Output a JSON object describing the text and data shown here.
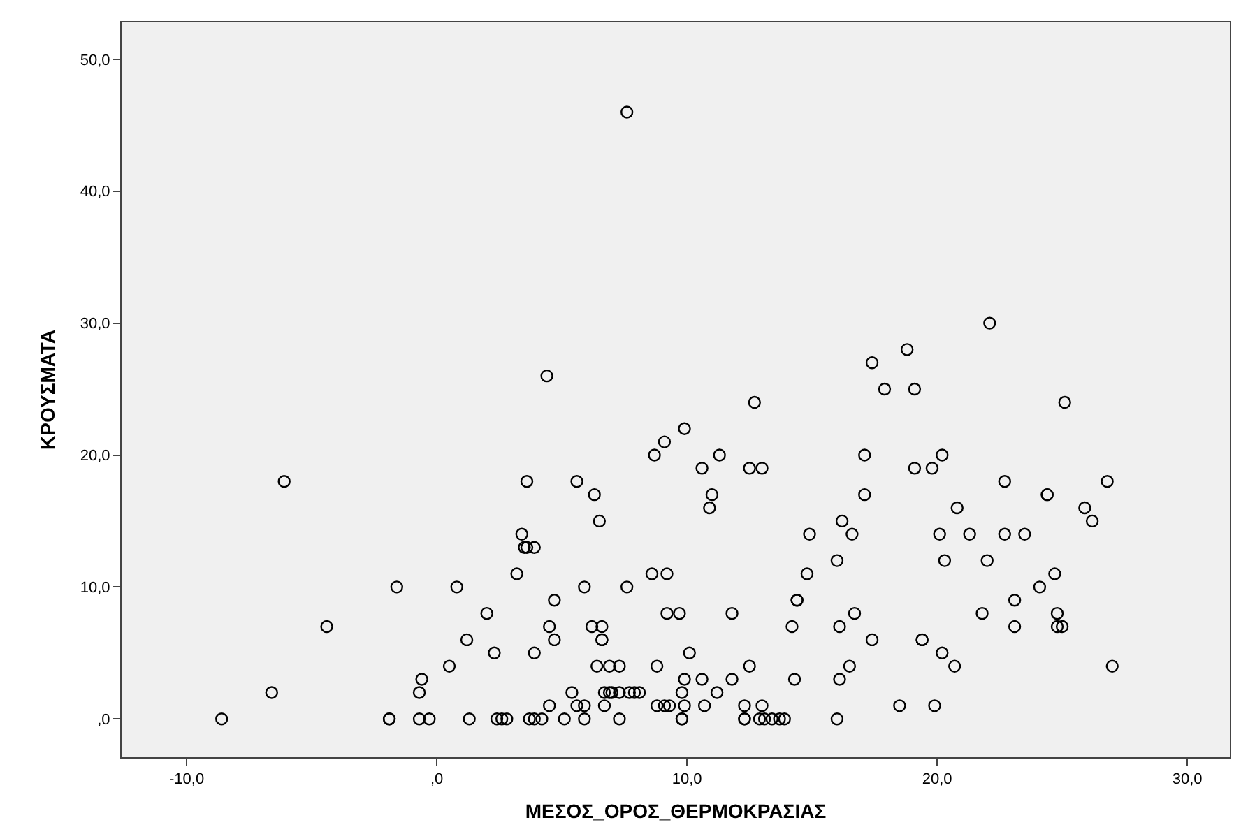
{
  "chart_data": {
    "type": "scatter",
    "xlabel": "ΜΕΣΟΣ_ΟΡΟΣ_ΘΕΡΜΟΚΡΑΣΙΑΣ",
    "ylabel": "ΚΡΟΥΣΜΑΤΑ",
    "x": [
      -8.6,
      -1.9,
      -1.9,
      -0.7,
      -0.3,
      1.3,
      2.4,
      2.6,
      2.8,
      3.7,
      3.9,
      4.2,
      5.1,
      5.9,
      7.3,
      9.8,
      9.8,
      12.3,
      12.3,
      12.9,
      13.1,
      13.4,
      13.7,
      13.9,
      16.0,
      4.5,
      5.6,
      5.9,
      6.7,
      8.8,
      9.1,
      9.3,
      9.9,
      10.7,
      12.3,
      13.0,
      18.5,
      19.9,
      -6.6,
      -0.7,
      5.4,
      6.7,
      6.9,
      7.0,
      7.3,
      7.7,
      7.9,
      8.1,
      9.8,
      11.2,
      -0.6,
      9.9,
      10.6,
      11.8,
      14.3,
      16.1,
      0.5,
      6.4,
      6.9,
      7.3,
      8.8,
      12.5,
      16.5,
      20.7,
      27.0,
      2.3,
      3.9,
      10.1,
      20.2,
      1.2,
      4.7,
      6.6,
      6.6,
      17.4,
      19.4,
      19.4,
      -4.4,
      4.5,
      6.2,
      6.6,
      14.2,
      16.1,
      23.1,
      24.8,
      25.0,
      2.0,
      9.2,
      9.7,
      11.8,
      16.7,
      21.8,
      24.8,
      4.7,
      14.4,
      14.4,
      23.1,
      -1.6,
      0.8,
      5.9,
      7.6,
      24.1,
      3.2,
      8.6,
      9.2,
      14.8,
      24.7,
      16.0,
      20.3,
      22.0,
      3.5,
      3.6,
      3.9,
      3.4,
      14.9,
      16.6,
      20.1,
      21.3,
      22.7,
      23.5,
      6.5,
      16.2,
      26.2,
      10.9,
      20.8,
      25.9,
      6.3,
      11.0,
      17.1,
      24.4,
      24.4,
      -6.1,
      3.6,
      5.6,
      22.7,
      26.8,
      10.6,
      12.5,
      13.0,
      19.1,
      19.8,
      8.7,
      11.3,
      17.1,
      20.2,
      9.1,
      9.9,
      12.7,
      25.1,
      17.9,
      19.1,
      4.4,
      17.4,
      18.8,
      22.1,
      7.6
    ],
    "series": [
      {
        "color": "#000000",
        "values": [
          0,
          0,
          0,
          0,
          0,
          0,
          0,
          0,
          0,
          0,
          0,
          0,
          0,
          0,
          0,
          0,
          0,
          0,
          0,
          0,
          0,
          0,
          0,
          0,
          0,
          1,
          1,
          1,
          1,
          1,
          1,
          1,
          1,
          1,
          1,
          1,
          1,
          1,
          2,
          2,
          2,
          2,
          2,
          2,
          2,
          2,
          2,
          2,
          2,
          2,
          3,
          3,
          3,
          3,
          3,
          3,
          4,
          4,
          4,
          4,
          4,
          4,
          4,
          4,
          4,
          5,
          5,
          5,
          5,
          6,
          6,
          6,
          6,
          6,
          6,
          6,
          7,
          7,
          7,
          7,
          7,
          7,
          7,
          7,
          7,
          8,
          8,
          8,
          8,
          8,
          8,
          8,
          9,
          9,
          9,
          9,
          10,
          10,
          10,
          10,
          10,
          11,
          11,
          11,
          11,
          11,
          12,
          12,
          12,
          13,
          13,
          13,
          14,
          14,
          14,
          14,
          14,
          14,
          14,
          15,
          15,
          15,
          16,
          16,
          16,
          17,
          17,
          17,
          17,
          17,
          18,
          18,
          18,
          18,
          18,
          19,
          19,
          19,
          19,
          19,
          20,
          20,
          20,
          20,
          21,
          22,
          24,
          24,
          25,
          25,
          26,
          27,
          28,
          30,
          46
        ]
      }
    ],
    "xlim": [
      -12.6,
      31.7
    ],
    "ylim": [
      -2.9,
      52.8
    ],
    "xticks": [
      {
        "value": -10,
        "label": "-10,0"
      },
      {
        "value": 0,
        "label": ",0"
      },
      {
        "value": 10,
        "label": "10,0"
      },
      {
        "value": 20,
        "label": "20,0"
      },
      {
        "value": 30,
        "label": "30,0"
      }
    ],
    "yticks": [
      {
        "value": 0,
        "label": ",0"
      },
      {
        "value": 10,
        "label": "10,0"
      },
      {
        "value": 20,
        "label": "20,0"
      },
      {
        "value": 30,
        "label": "30,0"
      },
      {
        "value": 40,
        "label": "40,0"
      },
      {
        "value": 50,
        "label": "50,0"
      }
    ],
    "marker": "circle",
    "grid": false
  }
}
